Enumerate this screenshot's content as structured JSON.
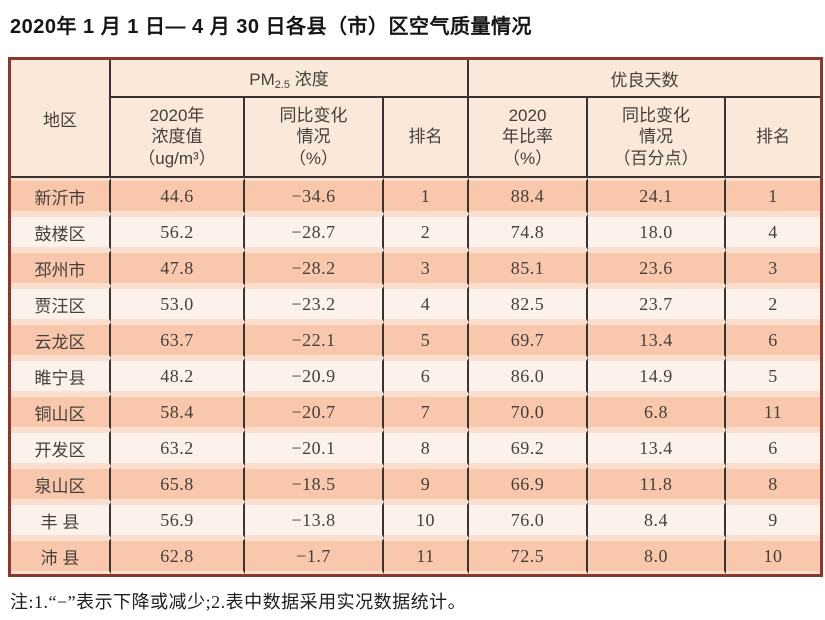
{
  "page": {
    "title": "2020年 1 月 1 日— 4 月 30 日各县（市）区空气质量情况",
    "note": "注:1.“−”表示下降或减少;2.表中数据采用实况数据统计。"
  },
  "colors": {
    "outer_border": "#8d372b",
    "grid_line": "#39332f",
    "header_bg": "#fae9da",
    "row_odd": "#f8c7ac",
    "row_even": "#fdf2eb",
    "row_gap": "#fbdfce",
    "text": "#454039"
  },
  "table": {
    "col_groups": {
      "region": "地区",
      "pm25_prefix": "PM",
      "pm25_sub": "2.5",
      "pm25_suffix": " 浓度",
      "good_days": "优良天数"
    },
    "sub_headers": {
      "pm25_value": "2020年\n浓度值\n（ug/m³）",
      "pm25_change": "同比变化\n情况\n（%）",
      "pm25_rank": "排名",
      "good_rate": "2020\n年比率\n（%）",
      "good_change": "同比变化\n情况\n（百分点）",
      "good_rank": "排名"
    },
    "cell_names": [
      "region-cell",
      "pm25-value-cell",
      "pm25-change-cell",
      "pm25-rank-cell",
      "good-rate-cell",
      "good-change-cell",
      "good-rank-cell"
    ],
    "rows": [
      [
        "新沂市",
        "44.6",
        "−34.6",
        "1",
        "88.4",
        "24.1",
        "1"
      ],
      [
        "鼓楼区",
        "56.2",
        "−28.7",
        "2",
        "74.8",
        "18.0",
        "4"
      ],
      [
        "邳州市",
        "47.8",
        "−28.2",
        "3",
        "85.1",
        "23.6",
        "3"
      ],
      [
        "贾汪区",
        "53.0",
        "−23.2",
        "4",
        "82.5",
        "23.7",
        "2"
      ],
      [
        "云龙区",
        "63.7",
        "−22.1",
        "5",
        "69.7",
        "13.4",
        "6"
      ],
      [
        "睢宁县",
        "48.2",
        "−20.9",
        "6",
        "86.0",
        "14.9",
        "5"
      ],
      [
        "铜山区",
        "58.4",
        "−20.7",
        "7",
        "70.0",
        "6.8",
        "11"
      ],
      [
        "开发区",
        "63.2",
        "−20.1",
        "8",
        "69.2",
        "13.4",
        "6"
      ],
      [
        "泉山区",
        "65.8",
        "−18.5",
        "9",
        "66.9",
        "11.8",
        "8"
      ],
      [
        "丰 县",
        "56.9",
        "−13.8",
        "10",
        "76.0",
        "8.4",
        "9"
      ],
      [
        "沛 县",
        "62.8",
        "−1.7",
        "11",
        "72.5",
        "8.0",
        "10"
      ]
    ]
  }
}
